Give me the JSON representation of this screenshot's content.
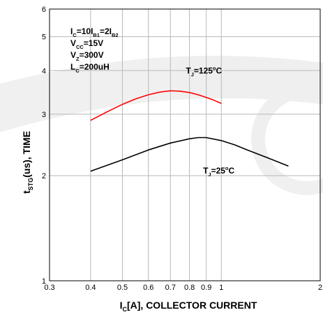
{
  "chart_data": {
    "type": "line",
    "x_scale": "log",
    "y_scale": "log",
    "xlim": [
      0.3,
      2
    ],
    "ylim": [
      1,
      6
    ],
    "grid": true,
    "x_ticks": [
      "0.3",
      "0.4",
      "0.5",
      "0.6",
      "0.7",
      "0.8",
      "0.9",
      "1",
      "2"
    ],
    "y_ticks": [
      "1",
      "2",
      "3",
      "4",
      "5",
      "6"
    ],
    "xlabel": {
      "main": "I",
      "sub": "C",
      "rest": "[A], COLLECTOR CURRENT"
    },
    "ylabel": {
      "main": "t",
      "sub": "STG",
      "rest": "(us), TIME"
    },
    "conditions": [
      {
        "parts": [
          [
            "I",
            ""
          ],
          [
            "C",
            "sub"
          ],
          [
            "=10I",
            ""
          ],
          [
            "B1",
            "sub"
          ],
          [
            "=2I",
            ""
          ],
          [
            "B2",
            "sub"
          ]
        ]
      },
      {
        "parts": [
          [
            "V",
            ""
          ],
          [
            "CC",
            "sub"
          ],
          [
            "=15V",
            ""
          ]
        ]
      },
      {
        "parts": [
          [
            "V",
            ""
          ],
          [
            "Z",
            "sub"
          ],
          [
            "=300V",
            ""
          ]
        ]
      },
      {
        "parts": [
          [
            "L",
            ""
          ],
          [
            "C",
            "sub"
          ],
          [
            "=200uH",
            ""
          ]
        ]
      }
    ],
    "series": [
      {
        "name": "T_J=125°C",
        "label_parts": [
          [
            "T",
            ""
          ],
          [
            "J",
            "sub"
          ],
          [
            "=125",
            ""
          ],
          [
            "o",
            "sup"
          ],
          [
            "C",
            ""
          ]
        ],
        "color": "#ff0000",
        "x": [
          0.4,
          0.45,
          0.5,
          0.55,
          0.6,
          0.65,
          0.7,
          0.75,
          0.8,
          0.85,
          0.9,
          0.95,
          1.0
        ],
        "y": [
          2.88,
          3.05,
          3.2,
          3.32,
          3.41,
          3.47,
          3.5,
          3.49,
          3.46,
          3.41,
          3.35,
          3.29,
          3.22
        ]
      },
      {
        "name": "T_J=25°C",
        "label_parts": [
          [
            "T",
            ""
          ],
          [
            "J",
            "sub"
          ],
          [
            "=25",
            ""
          ],
          [
            "o",
            "sup"
          ],
          [
            "C",
            ""
          ]
        ],
        "color": "#000000",
        "x": [
          0.4,
          0.5,
          0.6,
          0.7,
          0.8,
          0.85,
          0.9,
          1.0,
          1.1,
          1.2,
          1.4,
          1.6
        ],
        "y": [
          2.06,
          2.22,
          2.37,
          2.48,
          2.55,
          2.57,
          2.57,
          2.52,
          2.45,
          2.37,
          2.24,
          2.13
        ]
      }
    ]
  }
}
